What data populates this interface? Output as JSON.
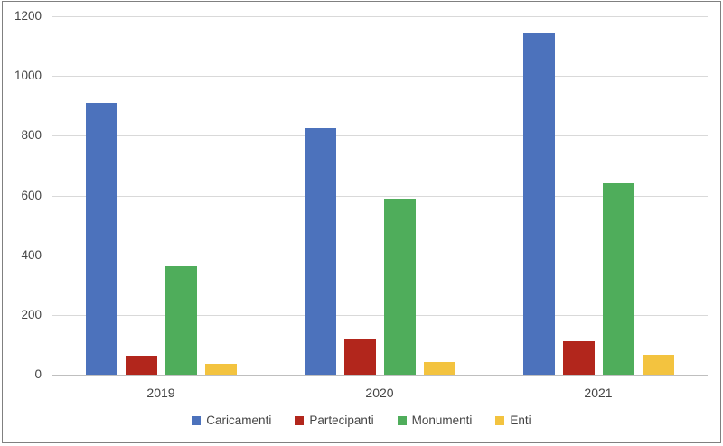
{
  "chart_data": {
    "type": "bar",
    "title": "",
    "xlabel": "",
    "ylabel": "",
    "categories": [
      "2019",
      "2020",
      "2021"
    ],
    "series": [
      {
        "name": "Caricamenti",
        "color": "#4C72BC",
        "values": [
          910,
          825,
          1143
        ]
      },
      {
        "name": "Partecipanti",
        "color": "#B2261C",
        "values": [
          64,
          117,
          112
        ]
      },
      {
        "name": "Monumenti",
        "color": "#4FAD5B",
        "values": [
          362,
          590,
          642
        ]
      },
      {
        "name": "Enti",
        "color": "#F3C33F",
        "values": [
          35,
          43,
          67
        ]
      }
    ],
    "ylim": [
      0,
      1200
    ],
    "yticks": [
      0,
      200,
      400,
      600,
      800,
      1000,
      1200
    ],
    "ytick_labels": [
      "0",
      "200",
      "400",
      "600",
      "800",
      "1000",
      "1200"
    ],
    "grid": true,
    "legend_position": "bottom",
    "colors": {
      "gridline": "#d9d9d9",
      "axis_line": "#bfbfbf",
      "text": "#444444",
      "frame_border": "#808080",
      "background": "#ffffff"
    }
  }
}
